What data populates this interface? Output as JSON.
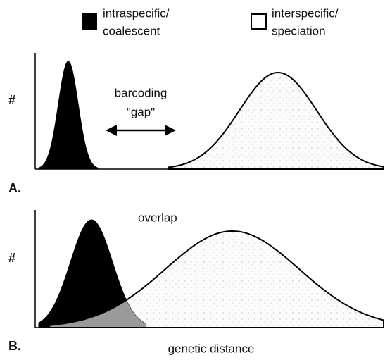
{
  "legend": [
    {
      "lines": [
        "intraspecific/",
        "coalescent"
      ]
    },
    {
      "lines": [
        "interspecific/",
        "speciation"
      ]
    }
  ],
  "panels": [
    {
      "label": "A.",
      "y_label": "#",
      "annotation": [
        "barcoding",
        "\"gap\""
      ]
    },
    {
      "label": "B.",
      "y_label": "#",
      "annotation": [
        "overlap"
      ]
    }
  ],
  "x_label": "genetic distance"
}
